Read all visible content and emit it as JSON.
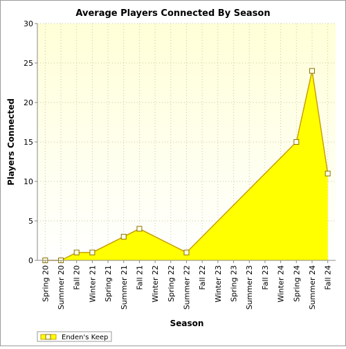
{
  "chart_data": {
    "type": "area",
    "title": "Average Players Connected By Season",
    "xlabel": "Season",
    "ylabel": "Players Connected",
    "ylim": [
      0,
      30
    ],
    "yticks": [
      0,
      5,
      10,
      15,
      20,
      25,
      30
    ],
    "grid": true,
    "legend_position": "bottom-left",
    "categories": [
      "Spring 20",
      "Summer 20",
      "Fall 20",
      "Winter 21",
      "Spring 21",
      "Summer 21",
      "Fall 21",
      "Winter 22",
      "Spring 22",
      "Summer 22",
      "Fall 22",
      "Winter 23",
      "Spring 23",
      "Summer 23",
      "Fall 23",
      "Winter 24",
      "Spring 24",
      "Summer 24",
      "Fall 24"
    ],
    "series": [
      {
        "name": "Enden's Keep",
        "color": "#ffff00",
        "line_color": "#c8a000",
        "values": [
          0,
          0,
          1,
          1,
          null,
          3,
          4,
          null,
          null,
          1,
          null,
          null,
          null,
          null,
          null,
          null,
          15,
          24,
          11
        ]
      }
    ],
    "colors": {
      "plot_background_top": "#ffffd8",
      "plot_background_bottom": "#ffffff",
      "grid": "#c8c8a0",
      "area": "#ffff00",
      "line": "#c8a000",
      "marker": "#ffffe8"
    }
  }
}
